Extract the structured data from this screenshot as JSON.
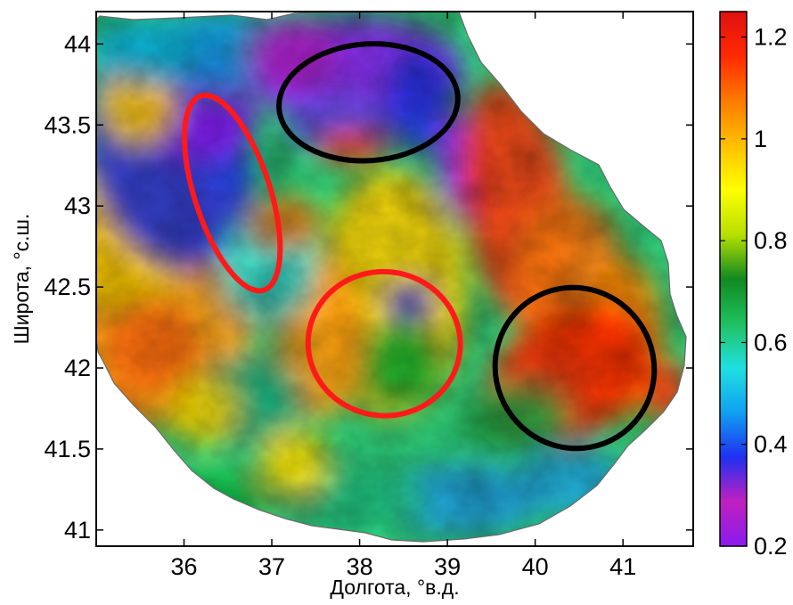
{
  "chart_data": {
    "type": "heatmap",
    "title": "",
    "xlabel": "Долгота, °в.д.",
    "ylabel": "Широта, °с.ш.",
    "xlim": [
      35.0,
      41.8
    ],
    "ylim": [
      40.9,
      44.2
    ],
    "x_ticks": [
      36,
      37,
      38,
      39,
      40,
      41
    ],
    "x_tick_labels": [
      "36",
      "37",
      "38",
      "39",
      "40",
      "41"
    ],
    "y_ticks": [
      41,
      41.5,
      42,
      42.5,
      43,
      43.5,
      44
    ],
    "y_tick_labels": [
      "41",
      "41.5",
      "42",
      "42.5",
      "43",
      "43.5",
      "44"
    ],
    "colorbar": {
      "min": 0.2,
      "max": 1.25,
      "ticks": [
        0.2,
        0.4,
        0.6,
        0.8,
        1,
        1.2
      ],
      "tick_labels": [
        "0.2",
        "0.4",
        "0.6",
        "0.8",
        "1",
        "1.2"
      ],
      "colormap": [
        "#8a1cf0",
        "#c020c0",
        "#2030f0",
        "#10a0f0",
        "#20e0e0",
        "#20c060",
        "#108a20",
        "#b8e000",
        "#ffff00",
        "#ffc000",
        "#ff7a00",
        "#ff2a00",
        "#e01010"
      ]
    },
    "ellipses": [
      {
        "color": "#ff1a1a",
        "cx": 36.55,
        "cy": 43.08,
        "rx": 0.43,
        "ry": 0.63,
        "rotation_deg": -18
      },
      {
        "color": "#ff1a1a",
        "cx": 38.28,
        "cy": 42.15,
        "rx": 0.82,
        "ry": 0.47,
        "rotation_deg": -85
      },
      {
        "color": "#000000",
        "cx": 38.1,
        "cy": 43.64,
        "rx": 1.02,
        "ry": 0.36,
        "rotation_deg": -4
      },
      {
        "color": "#000000",
        "cx": 40.45,
        "cy": 42.0,
        "rx": 0.9,
        "ry": 0.5,
        "rotation_deg": -32
      }
    ]
  }
}
